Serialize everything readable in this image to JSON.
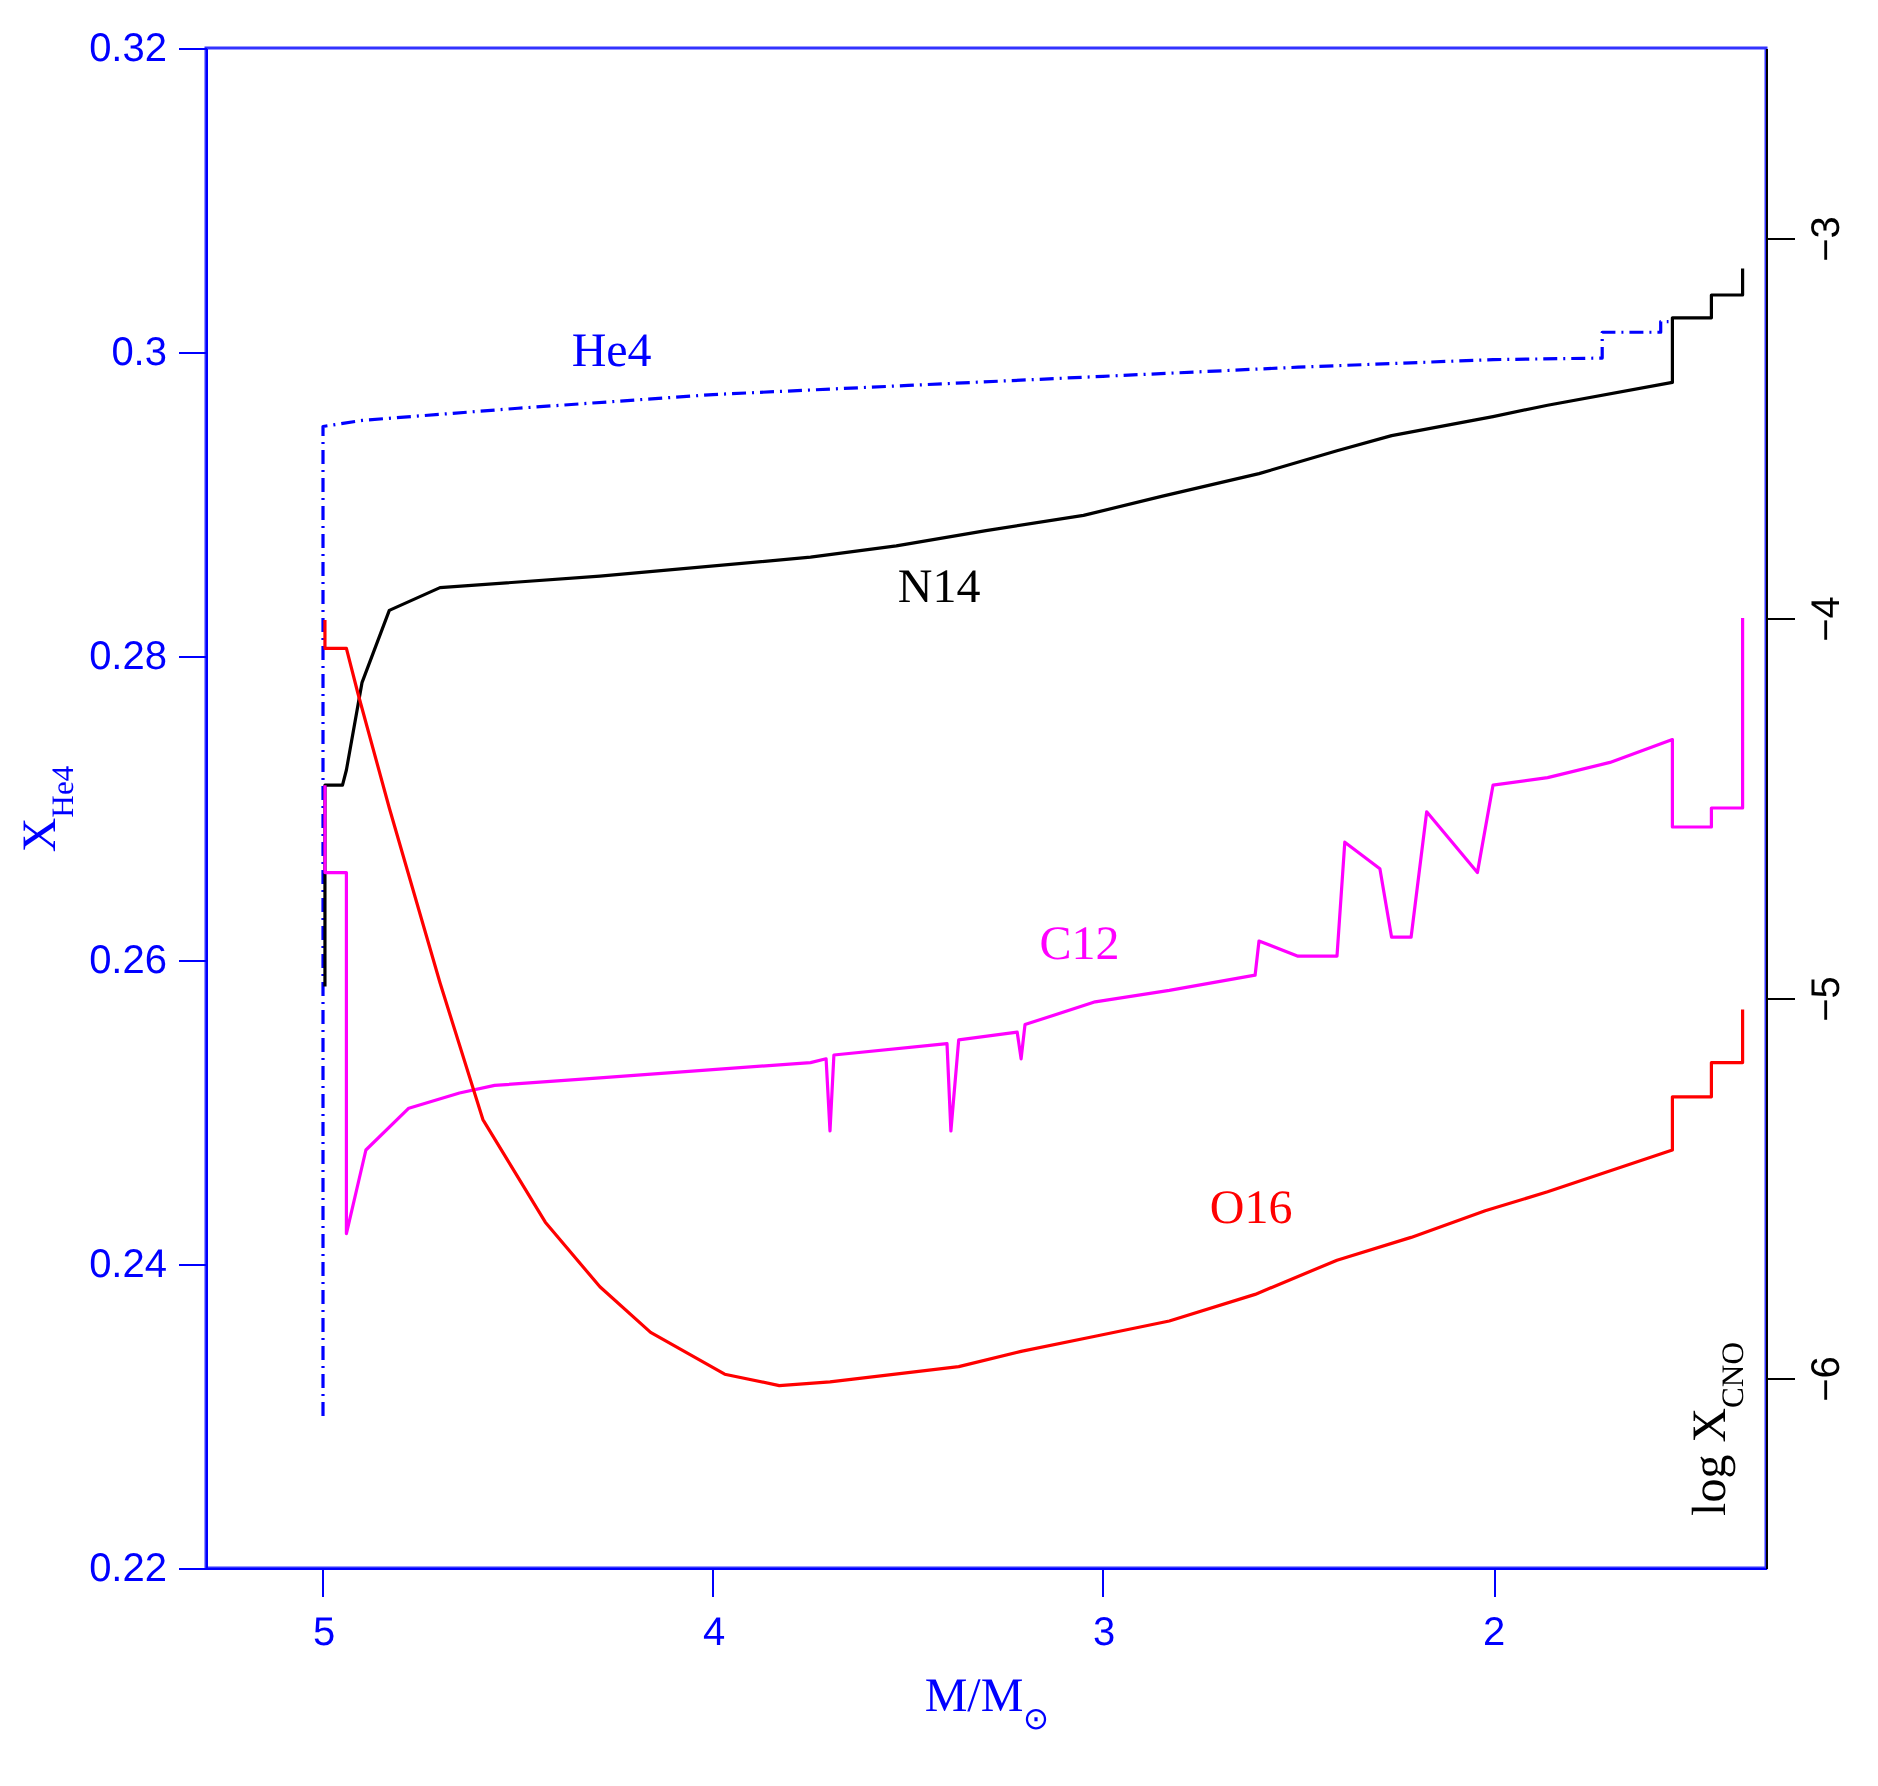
{
  "chart_data": {
    "type": "line",
    "xlabel": "M/M$_{⊙}$",
    "ylabel": "X$_{He4}$",
    "y2label": "log X$_{CNO}$",
    "xlim": [
      5.3,
      1.3
    ],
    "xticks": [
      5,
      4,
      3,
      2
    ],
    "ylim": [
      0.22,
      0.32
    ],
    "yticks": [
      0.22,
      0.24,
      0.26,
      0.28,
      0.3,
      0.32
    ],
    "y2lim": [
      -6.5,
      -2.5
    ],
    "y2ticks": [
      -6,
      -5,
      -4,
      -3
    ],
    "series": [
      {
        "name": "He4",
        "color": "#0000ff",
        "line_style": "dashed",
        "x": [
          5.0,
          5.0,
          4.9,
          4.5,
          4.0,
          3.5,
          3.0,
          2.5,
          2.0,
          1.72,
          1.72,
          1.57,
          1.57,
          1.55
        ],
        "values": [
          0.23,
          0.2951,
          0.2955,
          0.2963,
          0.2972,
          0.2978,
          0.2984,
          0.299,
          0.2995,
          0.2996,
          0.3013,
          0.3013,
          0.302,
          0.302
        ]
      },
      {
        "name": "N14",
        "color": "#000000",
        "axis": "y2",
        "x": [
          4.995,
          4.995,
          4.95,
          4.94,
          4.9,
          4.83,
          4.7,
          4.29,
          3.75,
          3.53,
          3.3,
          3.05,
          2.85,
          2.6,
          2.4,
          2.26,
          2.0,
          1.86,
          1.54,
          1.54,
          1.44,
          1.44,
          1.36,
          1.36
        ],
        "values": [
          -4.97,
          -4.44,
          -4.44,
          -4.4,
          -4.17,
          -3.98,
          -3.92,
          -3.89,
          -3.84,
          -3.81,
          -3.77,
          -3.73,
          -3.68,
          -3.62,
          -3.56,
          -3.52,
          -3.47,
          -3.44,
          -3.38,
          -3.21,
          -3.21,
          -3.15,
          -3.15,
          -3.08
        ]
      },
      {
        "name": "C12",
        "color": "#ff00ff",
        "axis": "y2",
        "x": [
          4.995,
          4.995,
          4.94,
          4.94,
          4.89,
          4.78,
          4.65,
          4.56,
          4.29,
          3.75,
          3.71,
          3.7,
          3.69,
          3.4,
          3.39,
          3.37,
          3.22,
          3.21,
          3.2,
          3.02,
          2.83,
          2.61,
          2.6,
          2.5,
          2.4,
          2.38,
          2.29,
          2.26,
          2.21,
          2.17,
          2.04,
          2.0,
          1.86,
          1.7,
          1.54,
          1.54,
          1.44,
          1.44,
          1.36,
          1.36
        ],
        "values": [
          -4.44,
          -4.67,
          -4.67,
          -5.62,
          -5.4,
          -5.29,
          -5.25,
          -5.23,
          -5.21,
          -5.17,
          -5.16,
          -5.35,
          -5.15,
          -5.12,
          -5.35,
          -5.11,
          -5.09,
          -5.16,
          -5.07,
          -5.01,
          -4.98,
          -4.94,
          -4.85,
          -4.89,
          -4.89,
          -4.59,
          -4.66,
          -4.84,
          -4.84,
          -4.51,
          -4.67,
          -4.44,
          -4.42,
          -4.38,
          -4.32,
          -4.55,
          -4.55,
          -4.5,
          -4.5,
          -4.0
        ]
      },
      {
        "name": "O16",
        "color": "#ff0000",
        "axis": "y2",
        "x": [
          4.995,
          4.995,
          4.94,
          4.91,
          4.83,
          4.7,
          4.59,
          4.43,
          4.29,
          4.16,
          3.97,
          3.83,
          3.7,
          3.37,
          3.21,
          3.02,
          2.83,
          2.61,
          2.4,
          2.21,
          2.02,
          1.86,
          1.54,
          1.54,
          1.44,
          1.44,
          1.36,
          1.36
        ],
        "values": [
          -4.005,
          -4.08,
          -4.08,
          -4.2,
          -4.5,
          -4.96,
          -5.32,
          -5.59,
          -5.76,
          -5.88,
          -5.99,
          -6.02,
          -6.01,
          -5.97,
          -5.93,
          -5.89,
          -5.85,
          -5.78,
          -5.69,
          -5.63,
          -5.56,
          -5.51,
          -5.4,
          -5.26,
          -5.26,
          -5.17,
          -5.17,
          -5.03
        ]
      }
    ]
  }
}
